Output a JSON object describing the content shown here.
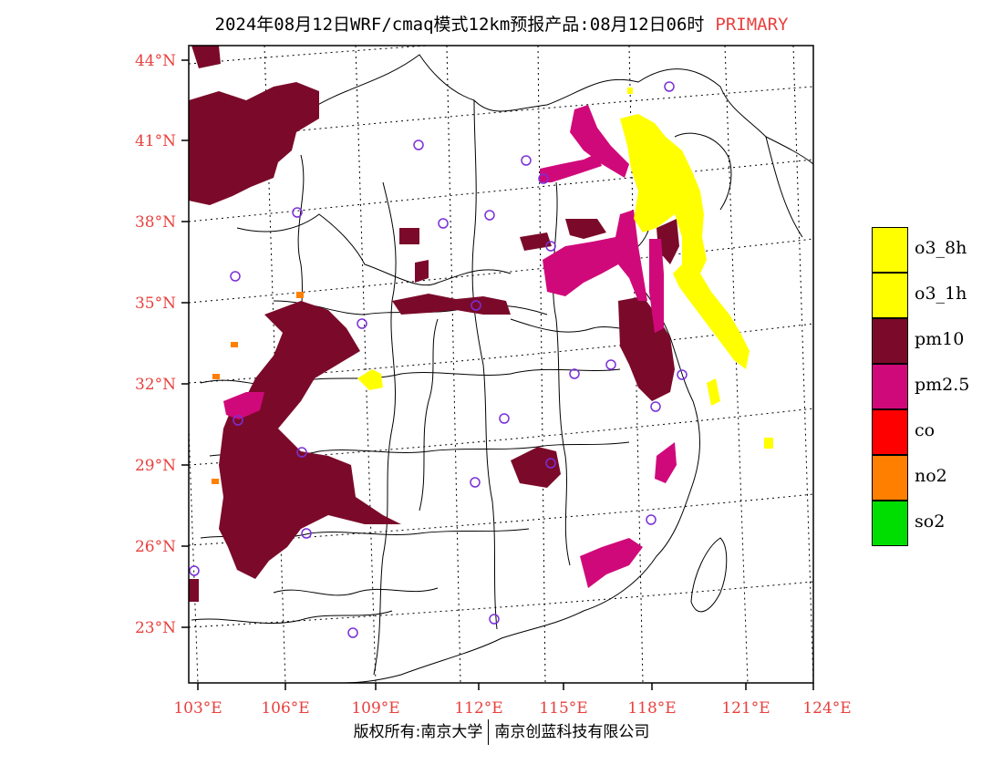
{
  "title": {
    "main": "2024年08月12日WRF/cmaq模式12km预报产品:08月12日06时",
    "primary": "PRIMARY"
  },
  "axes": {
    "lat_ticks": [
      "44°N",
      "41°N",
      "38°N",
      "35°N",
      "32°N",
      "29°N",
      "26°N",
      "23°N"
    ],
    "lon_ticks": [
      "103°E",
      "106°E",
      "109°E",
      "112°E",
      "115°E",
      "118°E",
      "121°E",
      "124°E"
    ],
    "tick_color": "#e8403e"
  },
  "legend": [
    {
      "label": "o3_8h",
      "color": "#ffff00"
    },
    {
      "label": "o3_1h",
      "color": "#ffff00"
    },
    {
      "label": "pm10",
      "color": "#7b0a2a"
    },
    {
      "label": "pm2.5",
      "color": "#d0097a"
    },
    {
      "label": "co",
      "color": "#ff0000"
    },
    {
      "label": "no2",
      "color": "#ff7f00"
    },
    {
      "label": "so2",
      "color": "#00dd00"
    }
  ],
  "footer": {
    "left": "版权所有:南京大学",
    "right": "南京创蓝科技有限公司"
  }
}
